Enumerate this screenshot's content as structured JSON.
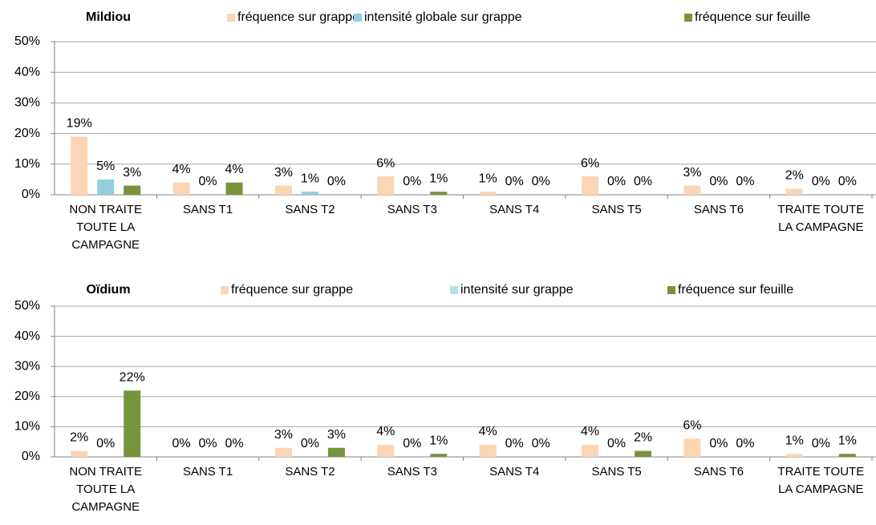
{
  "chart_data": [
    {
      "type": "bar",
      "title": "Mildiou",
      "categories": [
        "NON TRAITE TOUTE LA CAMPAGNE",
        "SANS T1",
        "SANS T2",
        "SANS T3",
        "SANS T4",
        "SANS T5",
        "SANS T6",
        "TRAITE TOUTE LA CAMPAGNE"
      ],
      "series": [
        {
          "name": "fréquence sur grappe",
          "color": "#fcd5b4",
          "values": [
            19,
            4,
            3,
            6,
            1,
            6,
            3,
            2
          ],
          "value_labels": [
            "19%",
            "4%",
            "3%",
            "6%",
            "1%",
            "6%",
            "3%",
            "2%"
          ]
        },
        {
          "name": "intensité globale sur grappe",
          "color": "#93cddd",
          "values": [
            5,
            0,
            1,
            0,
            0,
            0,
            0,
            0
          ],
          "value_labels": [
            "5%",
            "0%",
            "1%",
            "0%",
            "0%",
            "0%",
            "0%",
            "0%"
          ]
        },
        {
          "name": "fréquence sur feuille",
          "color": "#77933c",
          "values": [
            3,
            4,
            0,
            1,
            0,
            0,
            0,
            0
          ],
          "value_labels": [
            "3%",
            "4%",
            "0%",
            "1%",
            "0%",
            "0%",
            "0%",
            "0%"
          ]
        }
      ],
      "ylim": [
        0,
        50
      ],
      "yticks": [
        {
          "value": 0,
          "label": "0%"
        },
        {
          "value": 10,
          "label": "10%"
        },
        {
          "value": 20,
          "label": "20%"
        },
        {
          "value": 30,
          "label": "30%"
        },
        {
          "value": 40,
          "label": "40%"
        },
        {
          "value": 50,
          "label": "50%"
        }
      ],
      "grid": true
    },
    {
      "type": "bar",
      "title": "Oïdium",
      "categories": [
        "NON TRAITE TOUTE LA CAMPAGNE",
        "SANS T1",
        "SANS T2",
        "SANS T3",
        "SANS T4",
        "SANS T5",
        "SANS T6",
        "TRAITE TOUTE LA CAMPAGNE"
      ],
      "series": [
        {
          "name": "fréquence sur grappe",
          "color": "#fcd5b4",
          "values": [
            2,
            0,
            3,
            4,
            4,
            4,
            6,
            1
          ],
          "value_labels": [
            "2%",
            "0%",
            "3%",
            "4%",
            "4%",
            "4%",
            "6%",
            "1%"
          ]
        },
        {
          "name": "intensité sur grappe",
          "color": "#b7dee8",
          "values": [
            0,
            0,
            0,
            0,
            0,
            0,
            0,
            0
          ],
          "value_labels": [
            "0%",
            "0%",
            "0%",
            "0%",
            "0%",
            "0%",
            "0%",
            "0%"
          ]
        },
        {
          "name": "fréquence sur feuille",
          "color": "#77933c",
          "values": [
            22,
            0,
            3,
            1,
            0,
            2,
            0,
            1
          ],
          "value_labels": [
            "22%",
            "0%",
            "3%",
            "1%",
            "0%",
            "2%",
            "0%",
            "1%"
          ]
        }
      ],
      "ylim": [
        0,
        50
      ],
      "yticks": [
        {
          "value": 0,
          "label": "0%"
        },
        {
          "value": 10,
          "label": "10%"
        },
        {
          "value": 20,
          "label": "20%"
        },
        {
          "value": 30,
          "label": "30%"
        },
        {
          "value": 40,
          "label": "40%"
        },
        {
          "value": 50,
          "label": "50%"
        }
      ],
      "grid": true
    }
  ]
}
